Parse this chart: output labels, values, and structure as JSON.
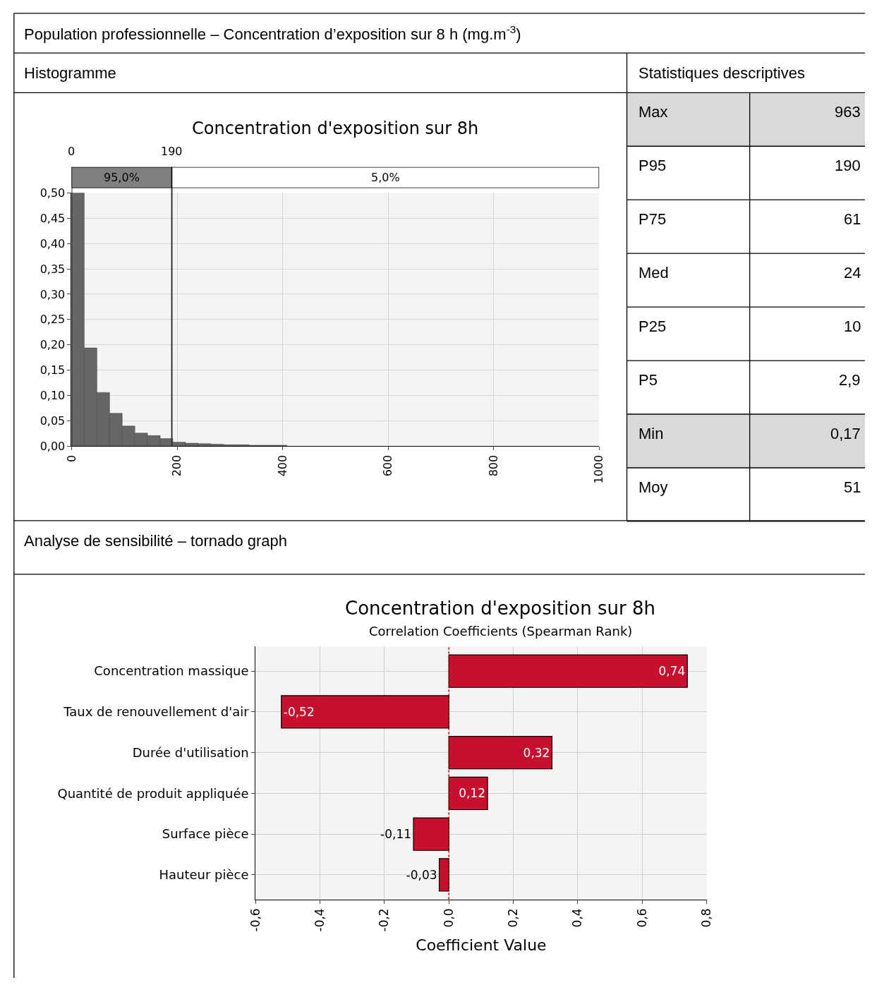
{
  "chart_data": [
    {
      "type": "histogram",
      "title": "Concentration d'exposition sur 8h",
      "annotations": [
        "Population professionnelle – Concentration d’exposition sur 8 h (mg.m$^{-3}$)",
        "Histogramme",
        "95,0%",
        "5,0%"
      ],
      "bins": [
        0,
        24,
        48,
        72,
        96,
        120,
        144,
        168,
        192,
        216,
        240,
        264,
        288,
        312,
        336,
        360,
        384,
        408
      ],
      "values": [
        0.5,
        0.194,
        0.106,
        0.065,
        0.04,
        0.026,
        0.021,
        0.015,
        0.008,
        0.006,
        0.005,
        0.004,
        0.003,
        0.003,
        0.002,
        0.002,
        0.002
      ],
      "color": "#666666",
      "xlim": [
        0,
        1000
      ],
      "xticks": [
        0,
        200,
        400,
        600,
        800,
        1000
      ],
      "ylim": [
        0,
        0.5
      ],
      "yticks": [
        {
          "value": 0,
          "label": "0,00"
        },
        {
          "value": 0.05,
          "label": "0,05"
        },
        {
          "value": 0.1,
          "label": "0,10"
        },
        {
          "value": 0.15,
          "label": "0,15"
        },
        {
          "value": 0.2,
          "label": "0,20"
        },
        {
          "value": 0.25,
          "label": "0,25"
        },
        {
          "value": 0.3,
          "label": "0,30"
        },
        {
          "value": 0.35,
          "label": "0,35"
        },
        {
          "value": 0.4,
          "label": "0,40"
        },
        {
          "value": 0.45,
          "label": "0,45"
        },
        {
          "value": 0.5,
          "label": "0,50"
        }
      ],
      "grid": true,
      "ref_lines": [
        {
          "axis": "x",
          "value": 0,
          "label": "0"
        },
        {
          "axis": "x",
          "value": 190,
          "label": "190"
        }
      ]
    },
    {
      "type": "other",
      "title": "Statistiques descriptives",
      "categories": [
        "Max",
        "P95",
        "P75",
        "Med",
        "P25",
        "P5",
        "Min",
        "Moy"
      ],
      "value_labels": [
        "963",
        "190",
        "61",
        "24",
        "10",
        "2,9",
        "0,17",
        "51"
      ],
      "colors": [
        "#d9d9d9",
        "#ffffff",
        "#ffffff",
        "#ffffff",
        "#ffffff",
        "#ffffff",
        "#d9d9d9",
        "#ffffff"
      ]
    },
    {
      "type": "bar",
      "orientation": "horizontal",
      "title": "Concentration d'exposition sur 8h",
      "subtitle": "Correlation Coefficients (Spearman Rank)",
      "annotations": [
        "Analyse de sensibilité – tornado graph"
      ],
      "xlabel": "Coefficient Value",
      "categories": [
        "Concentration massique",
        "Taux de renouvellement d'air",
        "Durée d'utilisation",
        "Quantité de produit appliquée",
        "Surface pièce",
        "Hauteur pièce"
      ],
      "values": [
        0.74,
        -0.52,
        0.32,
        0.12,
        -0.11,
        -0.03
      ],
      "value_labels": [
        "0,74",
        "-0,52",
        "0,32",
        "0,12",
        "-0,11",
        "-0,03"
      ],
      "color": "#c8102e",
      "xlim": [
        -0.6,
        0.8
      ],
      "xticks": [
        {
          "value": -0.6,
          "label": "-0,6"
        },
        {
          "value": -0.4,
          "label": "-0,4"
        },
        {
          "value": -0.2,
          "label": "-0,2"
        },
        {
          "value": 0,
          "label": "0,0"
        },
        {
          "value": 0.2,
          "label": "0,2"
        },
        {
          "value": 0.4,
          "label": "0,4"
        },
        {
          "value": 0.6,
          "label": "0,6"
        },
        {
          "value": 0.8,
          "label": "0,8"
        }
      ],
      "grid": true,
      "ref_lines": [
        {
          "axis": "x",
          "value": 0,
          "color": "#c00000",
          "line_style": "dotted"
        }
      ]
    }
  ]
}
